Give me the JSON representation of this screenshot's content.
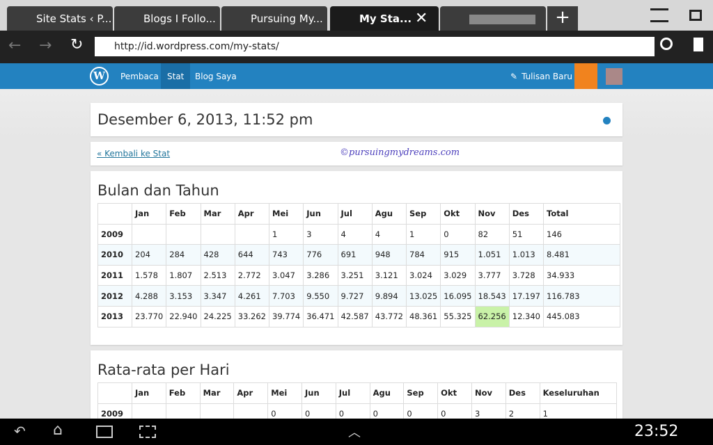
{
  "browser": {
    "tabs": [
      "Site Stats ‹ P...",
      "Blogs I Follo...",
      "Pursuing My...",
      "My Sta..."
    ],
    "url": "http://id.wordpress.com/my-stats/"
  },
  "wp_bar": {
    "nav": [
      "Pembaca",
      "Stat",
      "Blog Saya"
    ],
    "new_post": "Tulisan Baru"
  },
  "header": {
    "title": "Desember 6, 2013, 11:52 pm"
  },
  "links": {
    "back": "« Kembali ke Stat",
    "watermark": "©pursuingmydreams.com"
  },
  "tables": [
    {
      "title": "Bulan dan Tahun",
      "columns": [
        "Jan",
        "Feb",
        "Mar",
        "Apr",
        "Mei",
        "Jun",
        "Jul",
        "Agu",
        "Sep",
        "Okt",
        "Nov",
        "Des",
        "Total"
      ],
      "rows": [
        [
          "2009",
          null,
          null,
          null,
          null,
          "1",
          "3",
          "4",
          "4",
          "1",
          "0",
          "82",
          "51",
          "146"
        ],
        [
          "2010",
          "204",
          "284",
          "428",
          "644",
          "743",
          "776",
          "691",
          "948",
          "784",
          "915",
          "1.051",
          "1.013",
          "8.481"
        ],
        [
          "2011",
          "1.578",
          "1.807",
          "2.513",
          "2.772",
          "3.047",
          "3.286",
          "3.251",
          "3.121",
          "3.024",
          "3.029",
          "3.777",
          "3.728",
          "34.933"
        ],
        [
          "2012",
          "4.288",
          "3.153",
          "3.347",
          "4.261",
          "7.703",
          "9.550",
          "9.727",
          "9.894",
          "13.025",
          "16.095",
          "18.543",
          "17.197",
          "116.783"
        ],
        [
          "2013",
          "23.770",
          "22.940",
          "24.225",
          "33.262",
          "39.774",
          "36.471",
          "42.587",
          "43.772",
          "48.361",
          "55.325",
          "62.256",
          "12.340",
          "445.083"
        ]
      ]
    },
    {
      "title": "Rata-rata per Hari",
      "columns": [
        "Jan",
        "Feb",
        "Mar",
        "Apr",
        "Mei",
        "Jun",
        "Jul",
        "Agu",
        "Sep",
        "Okt",
        "Nov",
        "Des",
        "Keseluruhan"
      ],
      "rows": [
        [
          "2009",
          null,
          null,
          null,
          null,
          "0",
          "0",
          "0",
          "0",
          "0",
          "0",
          "3",
          "2",
          "1"
        ]
      ]
    }
  ],
  "status_bar": {
    "time": "23:52"
  }
}
